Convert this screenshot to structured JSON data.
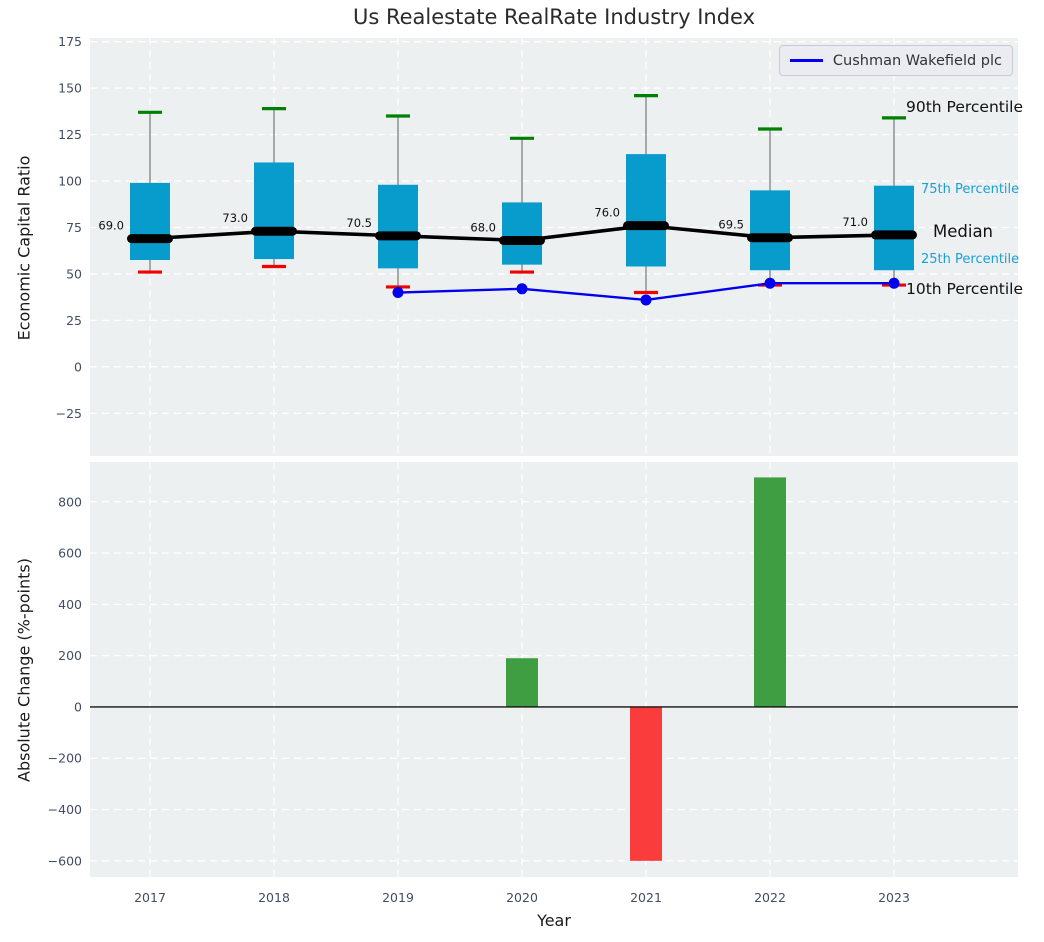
{
  "title": "Us Realestate RealRate Industry Index",
  "legend": {
    "label": "Cushman Wakefield plc",
    "line_color": "#0000ee"
  },
  "annotations": {
    "p90": "90th Percentile",
    "p75": "75th Percentile",
    "median": "Median",
    "p25": "25th Percentile",
    "p10": "10th Percentile"
  },
  "colors": {
    "plot_bg": "#edf0f1",
    "grid": "#ffffff",
    "tick_label": "#414e63",
    "box_fill": "#089ccd",
    "whisker": "#777777",
    "cap_high": "#008000",
    "cap_low": "#f00000",
    "median": "#000000",
    "company_line": "#0000ee",
    "bar_up": "#3f9e42",
    "bar_down": "#fa3c3c",
    "zero_line": "#111111",
    "median_label": "#111111"
  },
  "chart_data": [
    {
      "type": "boxplot+line",
      "title": "Us Realestate RealRate Industry Index",
      "ylabel": "Economic Capital Ratio",
      "categories": [
        "2017",
        "2018",
        "2019",
        "2020",
        "2021",
        "2022",
        "2023"
      ],
      "yticks": [
        175,
        150,
        125,
        100,
        75,
        50,
        25,
        0,
        -25
      ],
      "ylim": [
        -48,
        177
      ],
      "grid": true,
      "legend_position": "upper right",
      "box": {
        "p10": [
          51,
          54,
          43,
          51,
          40,
          44,
          44
        ],
        "p25": [
          57.5,
          58,
          53,
          55,
          54,
          52,
          52
        ],
        "median": [
          69,
          73,
          70.5,
          68,
          76,
          69.5,
          71
        ],
        "p75": [
          99,
          110,
          98,
          88.5,
          114.5,
          95,
          97.5
        ],
        "p90": [
          137,
          139,
          135,
          123,
          146,
          128,
          134
        ]
      },
      "median_labels": [
        "69.0",
        "73.0",
        "70.5",
        "68.0",
        "76.0",
        "69.5",
        "71.0"
      ],
      "series": [
        {
          "name": "Cushman Wakefield plc",
          "x": [
            "2019",
            "2020",
            "2021",
            "2022",
            "2023"
          ],
          "values": [
            40,
            42,
            36,
            45,
            45
          ]
        }
      ]
    },
    {
      "type": "bar",
      "ylabel": "Absolute Change (%-points)",
      "xlabel": "Year",
      "categories": [
        "2017",
        "2018",
        "2019",
        "2020",
        "2021",
        "2022",
        "2023"
      ],
      "values": [
        null,
        null,
        null,
        190,
        -600,
        895,
        0
      ],
      "yticks": [
        800,
        600,
        400,
        200,
        0,
        -200,
        -400,
        -600
      ],
      "ylim": [
        -663,
        955
      ],
      "grid": true
    }
  ]
}
